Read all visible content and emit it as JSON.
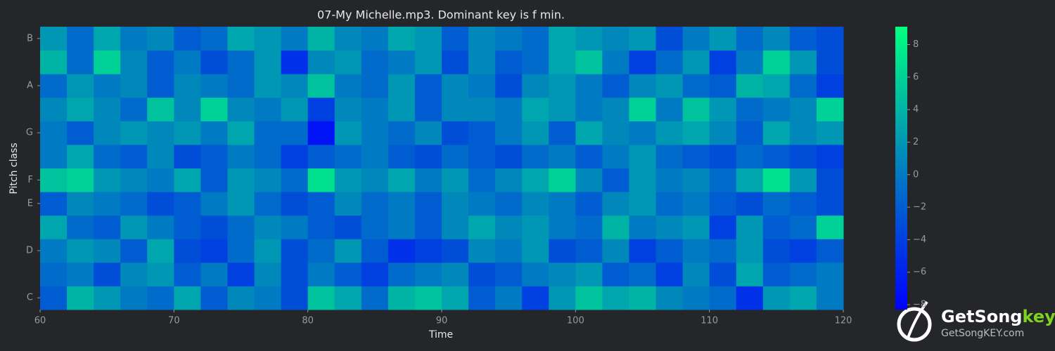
{
  "chart_data": {
    "type": "heatmap",
    "title": "07-My Michelle.mp3. Dominant key is f min.",
    "xlabel": "Time",
    "ylabel": "Pitch class",
    "categories": [
      "C",
      null,
      "D",
      null,
      "E",
      "F",
      null,
      "G",
      null,
      "A",
      null,
      "B"
    ],
    "x_edges": [
      60,
      62,
      64,
      66,
      68,
      70,
      72,
      74,
      76,
      78,
      80,
      82,
      84,
      86,
      88,
      90,
      92,
      94,
      96,
      98,
      100,
      102,
      104,
      106,
      108,
      110,
      112,
      114,
      116,
      118,
      120
    ],
    "xlim": [
      60,
      120
    ],
    "xticks": [
      60,
      70,
      80,
      90,
      100,
      110,
      120
    ],
    "z": [
      [
        -2,
        4,
        2,
        0,
        -1,
        3,
        -2,
        1,
        0,
        -3,
        5,
        3,
        -1,
        4,
        5,
        3,
        -2,
        0,
        -4,
        2,
        5,
        3,
        4,
        1,
        0,
        -1,
        -5,
        2,
        3,
        0
      ],
      [
        -1,
        0,
        -3,
        1,
        2,
        -2,
        0,
        -4,
        1,
        -3,
        0,
        -2,
        -4,
        -1,
        0,
        1,
        -3,
        -2,
        0,
        1,
        2,
        -2,
        -1,
        -4,
        1,
        -3,
        3,
        -2,
        -1,
        0
      ],
      [
        0,
        2,
        1,
        -2,
        3,
        -3,
        -4,
        -1,
        2,
        -3,
        -1,
        2,
        -2,
        -5,
        -4,
        -3,
        1,
        0,
        2,
        -3,
        -2,
        1,
        -4,
        -2,
        0,
        -1,
        2,
        -3,
        -4,
        -2
      ],
      [
        3,
        -1,
        -2,
        2,
        0,
        -2,
        -3,
        -1,
        1,
        0,
        -2,
        -3,
        -1,
        0,
        -2,
        1,
        3,
        1,
        2,
        0,
        -1,
        4,
        0,
        1,
        2,
        -4,
        2,
        -2,
        -1,
        6
      ],
      [
        -2,
        1,
        0,
        -1,
        -3,
        -2,
        0,
        2,
        -1,
        -3,
        -2,
        1,
        -1,
        0,
        -2,
        1,
        0,
        -1,
        1,
        0,
        -2,
        1,
        2,
        -1,
        0,
        -2,
        -3,
        -1,
        -2,
        -3
      ],
      [
        5,
        6,
        2,
        1,
        0,
        3,
        -2,
        2,
        1,
        -1,
        7,
        2,
        1,
        3,
        0,
        2,
        -1,
        1,
        3,
        6,
        1,
        -2,
        2,
        0,
        1,
        -1,
        3,
        7,
        2,
        -3
      ],
      [
        0,
        3,
        -1,
        -2,
        1,
        -3,
        -2,
        0,
        -1,
        -4,
        -2,
        -1,
        0,
        -2,
        -3,
        -1,
        -2,
        -3,
        -1,
        0,
        -2,
        0,
        2,
        -1,
        -2,
        -3,
        -1,
        -2,
        -3,
        -4
      ],
      [
        0,
        -2,
        1,
        2,
        1,
        2,
        0,
        3,
        -1,
        -1,
        -7,
        2,
        0,
        -1,
        1,
        -3,
        -2,
        0,
        2,
        -2,
        3,
        1,
        0,
        2,
        3,
        1,
        -2,
        3,
        1,
        2
      ],
      [
        1,
        3,
        1,
        -1,
        5,
        1,
        6,
        1,
        0,
        2,
        -4,
        1,
        0,
        2,
        -2,
        1,
        1,
        0,
        3,
        2,
        0,
        1,
        6,
        0,
        5,
        2,
        -1,
        0,
        1,
        6
      ],
      [
        -1,
        2,
        0,
        1,
        -2,
        1,
        0,
        -1,
        2,
        1,
        5,
        0,
        -1,
        2,
        -2,
        1,
        0,
        -3,
        1,
        2,
        0,
        -2,
        1,
        2,
        -1,
        -2,
        4,
        3,
        -1,
        -4
      ],
      [
        4,
        -1,
        6,
        1,
        -2,
        0,
        -3,
        -1,
        2,
        -5,
        1,
        2,
        -1,
        0,
        2,
        -3,
        1,
        -2,
        -1,
        3,
        5,
        0,
        -4,
        -1,
        2,
        -4,
        0,
        6,
        2,
        -3
      ],
      [
        2,
        -1,
        3,
        0,
        1,
        -2,
        -1,
        3,
        2,
        0,
        4,
        1,
        0,
        3,
        2,
        -2,
        1,
        0,
        -1,
        3,
        2,
        1,
        2,
        -3,
        0,
        2,
        -1,
        1,
        -2,
        -3
      ]
    ],
    "colorscale": [
      "#0000ff",
      "#00ff80"
    ],
    "clim": [
      -8.3,
      9.1
    ],
    "cticks": [
      {
        "value": -8,
        "label": "−8"
      },
      {
        "value": -6,
        "label": "−6"
      },
      {
        "value": -4,
        "label": "−4"
      },
      {
        "value": -2,
        "label": "−2"
      },
      0,
      2,
      4,
      6,
      8
    ]
  },
  "watermark": {
    "brand": "GetSong",
    "brand_accent": "key",
    "url": "GetSongKEY.com"
  }
}
